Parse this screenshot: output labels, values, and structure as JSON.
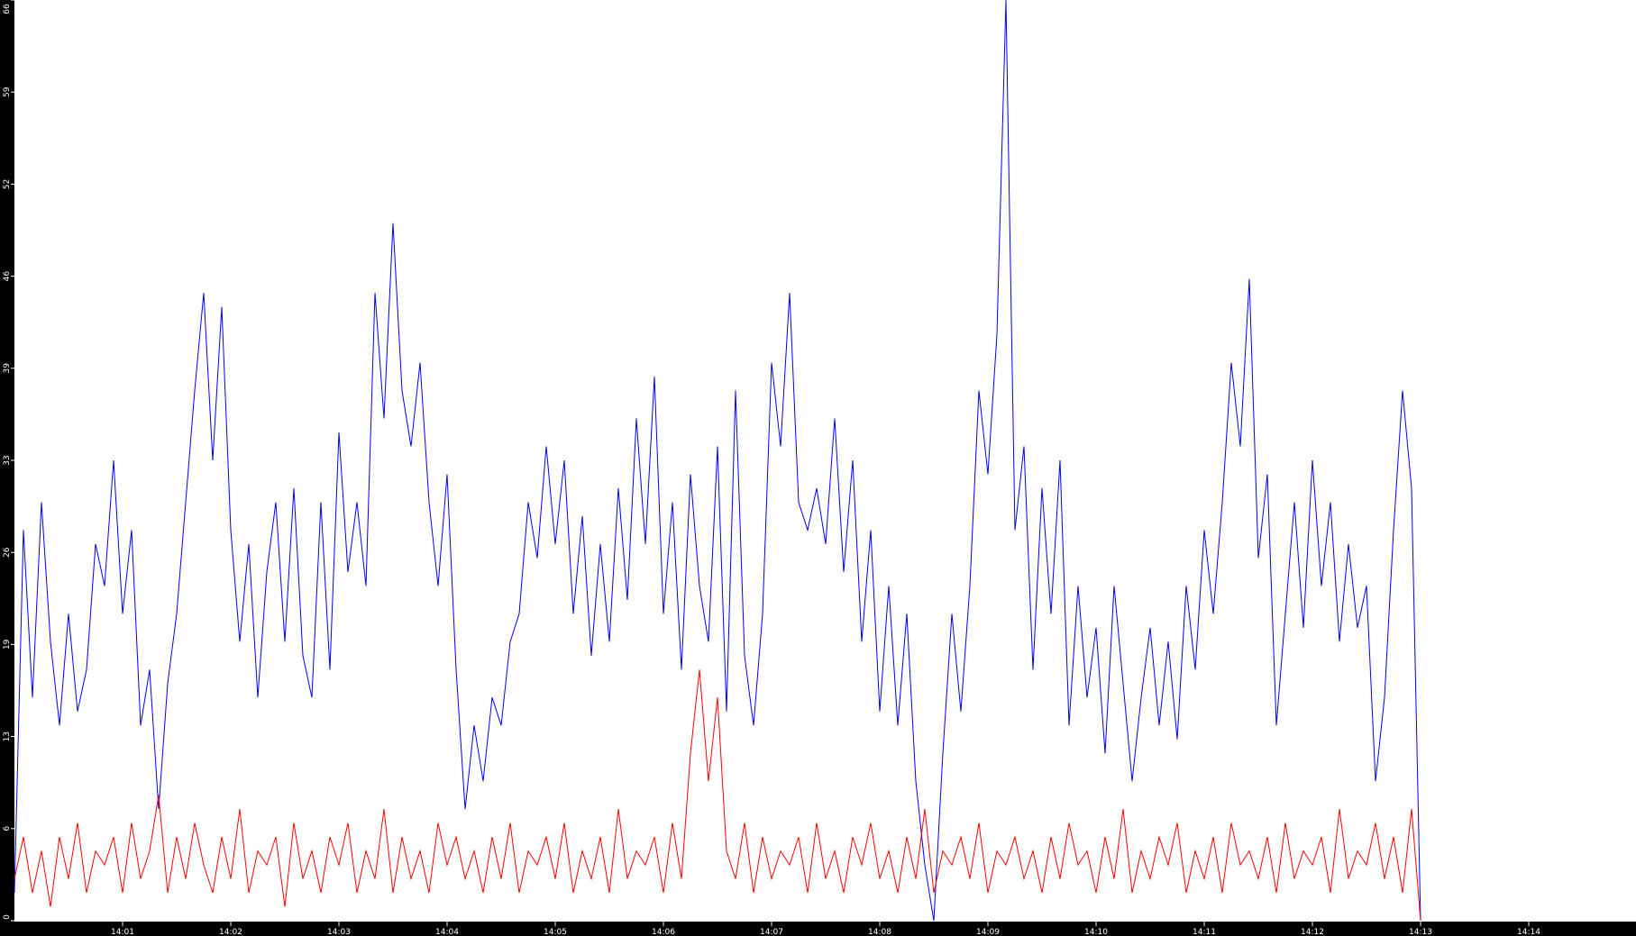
{
  "chart_data": {
    "type": "line",
    "title": "",
    "xlabel": "",
    "ylabel": "",
    "x_start": "14:00:00",
    "sample_interval_seconds": 5,
    "xlim": [
      "14:00:00",
      "14:15:00"
    ],
    "ylim": [
      0,
      66
    ],
    "y_ticks": [
      "0",
      "6",
      "13",
      "19",
      "26",
      "33",
      "39",
      "46",
      "52",
      "59",
      "66"
    ],
    "x_ticks": [
      "14:01",
      "14:02",
      "14:03",
      "14:04",
      "14:05",
      "14:06",
      "14:07",
      "14:08",
      "14:09",
      "14:10",
      "14:11",
      "14:12",
      "14:13",
      "14:14"
    ],
    "grid": false,
    "legend": "none",
    "colors": {
      "background": "#ffffff",
      "axis_background": "#000000",
      "axis_text": "#ffffff"
    },
    "series": [
      {
        "color": "#0000ff",
        "values": [
          2,
          28,
          16,
          30,
          20,
          14,
          22,
          15,
          18,
          27,
          24,
          33,
          22,
          28,
          14,
          18,
          8,
          17,
          22,
          30,
          38,
          45,
          33,
          44,
          28,
          20,
          27,
          16,
          25,
          30,
          20,
          31,
          19,
          16,
          30,
          18,
          35,
          25,
          30,
          24,
          45,
          36,
          50,
          38,
          34,
          40,
          30,
          24,
          32,
          18,
          8,
          14,
          10,
          16,
          14,
          20,
          22,
          30,
          26,
          34,
          27,
          33,
          22,
          29,
          19,
          27,
          20,
          31,
          23,
          36,
          27,
          39,
          22,
          30,
          18,
          32,
          24,
          20,
          34,
          15,
          38,
          19,
          14,
          22,
          40,
          34,
          45,
          30,
          28,
          31,
          27,
          36,
          25,
          33,
          20,
          28,
          15,
          24,
          14,
          22,
          10,
          4,
          0,
          12,
          22,
          15,
          24,
          38,
          32,
          42,
          66,
          28,
          34,
          18,
          31,
          22,
          33,
          14,
          24,
          16,
          21,
          12,
          24,
          17,
          10,
          16,
          21,
          14,
          20,
          13,
          24,
          18,
          28,
          22,
          30,
          40,
          34,
          46,
          26,
          32,
          14,
          22,
          30,
          21,
          33,
          24,
          30,
          20,
          27,
          21,
          24,
          10,
          16,
          28,
          38,
          31,
          0
        ]
      },
      {
        "color": "#ff0000",
        "values": [
          3,
          6,
          2,
          5,
          1,
          6,
          3,
          7,
          2,
          5,
          4,
          6,
          2,
          7,
          3,
          5,
          9,
          2,
          6,
          3,
          7,
          4,
          2,
          6,
          3,
          8,
          2,
          5,
          4,
          6,
          1,
          7,
          3,
          5,
          2,
          6,
          4,
          7,
          2,
          5,
          3,
          8,
          2,
          6,
          3,
          5,
          2,
          7,
          4,
          6,
          3,
          5,
          2,
          6,
          3,
          7,
          2,
          5,
          4,
          6,
          3,
          7,
          2,
          5,
          3,
          6,
          2,
          8,
          3,
          5,
          4,
          6,
          2,
          7,
          3,
          12,
          18,
          10,
          16,
          5,
          3,
          7,
          2,
          6,
          3,
          5,
          4,
          6,
          2,
          7,
          3,
          5,
          2,
          6,
          4,
          7,
          3,
          5,
          2,
          6,
          3,
          8,
          2,
          5,
          4,
          6,
          3,
          7,
          2,
          5,
          4,
          6,
          3,
          5,
          2,
          6,
          3,
          7,
          4,
          5,
          2,
          6,
          3,
          8,
          2,
          5,
          3,
          6,
          4,
          7,
          2,
          5,
          3,
          6,
          2,
          7,
          4,
          5,
          3,
          6,
          2,
          7,
          3,
          5,
          4,
          6,
          2,
          8,
          3,
          5,
          4,
          7,
          3,
          6,
          2,
          8,
          0
        ]
      }
    ]
  }
}
